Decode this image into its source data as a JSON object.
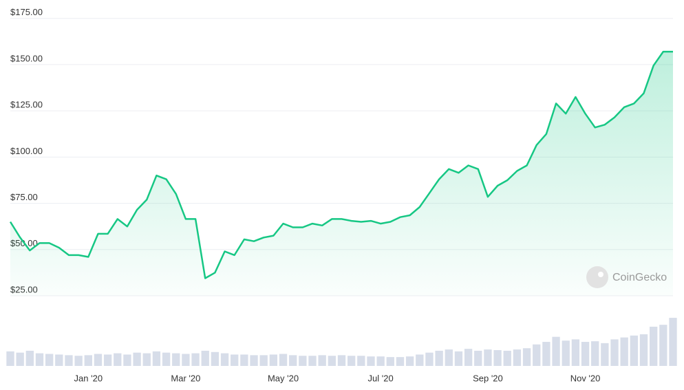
{
  "chart_data": {
    "type": "line",
    "categories": [
      null,
      null,
      null,
      null,
      null,
      null,
      null,
      null,
      "Jan '20",
      null,
      null,
      null,
      null,
      null,
      null,
      null,
      null,
      null,
      "Mar '20",
      null,
      null,
      null,
      null,
      null,
      null,
      null,
      null,
      null,
      "May '20",
      null,
      null,
      null,
      null,
      null,
      null,
      null,
      null,
      null,
      "Jul '20",
      null,
      null,
      null,
      null,
      null,
      null,
      null,
      null,
      null,
      null,
      "Sep '20",
      null,
      null,
      null,
      null,
      null,
      null,
      null,
      null,
      null,
      "Nov '20",
      null,
      null,
      null,
      null,
      null,
      null,
      null,
      null,
      null
    ],
    "series": [
      {
        "color": "#16c784",
        "values": [
          65,
          56.5,
          49.5,
          53.5,
          53.5,
          51,
          47,
          47,
          46,
          58.5,
          58.5,
          66.5,
          62.5,
          71.5,
          77,
          90,
          88,
          80,
          66.5,
          66.5,
          34.5,
          37.5,
          49,
          47,
          55.5,
          54.5,
          56.5,
          57.5,
          64,
          62,
          62,
          64,
          63,
          66.5,
          66.5,
          65.5,
          65,
          65.5,
          64,
          65,
          67.5,
          68.5,
          73,
          80.5,
          88,
          93.5,
          91.5,
          95.5,
          93.5,
          78.5,
          84.5,
          87.5,
          92.5,
          95.5,
          106.5,
          112.5,
          129,
          123.5,
          132.5,
          123.5,
          116,
          117.5,
          121.5,
          127,
          129,
          134.5,
          149.5,
          157,
          157
        ]
      }
    ],
    "volume": {
      "color": "#d7dde9",
      "vlim": [
        0,
        10
      ],
      "values": [
        2.3,
        2.1,
        2.4,
        2,
        1.9,
        1.8,
        1.7,
        1.6,
        1.7,
        1.9,
        1.8,
        2,
        1.8,
        2.1,
        2,
        2.3,
        2.1,
        2,
        1.9,
        2,
        2.4,
        2.2,
        2,
        1.8,
        1.8,
        1.7,
        1.7,
        1.8,
        1.9,
        1.7,
        1.6,
        1.6,
        1.7,
        1.6,
        1.7,
        1.6,
        1.6,
        1.5,
        1.5,
        1.4,
        1.4,
        1.5,
        1.8,
        2.1,
        2.4,
        2.6,
        2.3,
        2.7,
        2.4,
        2.6,
        2.5,
        2.4,
        2.6,
        2.8,
        3.4,
        3.8,
        4.6,
        4,
        4.2,
        3.8,
        3.9,
        3.6,
        4.2,
        4.5,
        4.8,
        5,
        6.2,
        6.5,
        7.6
      ]
    },
    "ylim": [
      25,
      177.5
    ],
    "yticks": [
      {
        "value": 25,
        "label": "$25.00"
      },
      {
        "value": 50,
        "label": "$50.00"
      },
      {
        "value": 75,
        "label": "$75.00"
      },
      {
        "value": 100,
        "label": "$100.00"
      },
      {
        "value": 125,
        "label": "$125.00"
      },
      {
        "value": 150,
        "label": "$150.00"
      },
      {
        "value": 175,
        "label": "$175.00"
      }
    ],
    "grid": true,
    "watermark": "CoinGecko"
  }
}
